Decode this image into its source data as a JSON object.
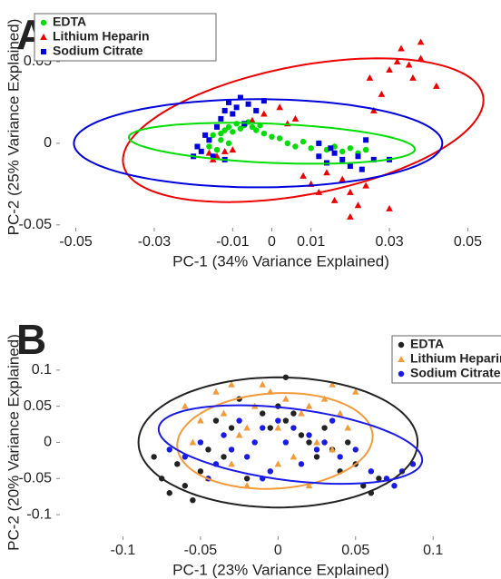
{
  "chart_data": [
    {
      "type": "scatter",
      "panel": "A",
      "xlabel": "PC-1 (34% Variance Explained)",
      "ylabel": "PC-2 (25% Variance Explained)",
      "xlim": [
        -0.055,
        0.055
      ],
      "ylim": [
        -0.054,
        0.085
      ],
      "xticks": [
        -0.05,
        -0.03,
        -0.01,
        0,
        0.01,
        0.03,
        0.05
      ],
      "yticks": [
        -0.05,
        0,
        0.05
      ],
      "legend": "northwest",
      "series": [
        {
          "name": "EDTA",
          "color": "#00dd00",
          "marker": "circle",
          "x": [
            -0.015,
            -0.013,
            -0.012,
            -0.011,
            -0.01,
            -0.009,
            -0.008,
            -0.007,
            -0.006,
            -0.005,
            -0.004,
            -0.003,
            -0.002,
            -0.016,
            -0.014,
            0.002,
            0.004,
            0.006,
            0.008,
            0.01,
            0.012,
            0.014,
            0.016,
            0.018,
            0.02,
            0.022,
            0.024,
            -0.011,
            -0.013,
            0
          ],
          "y": [
            0.005,
            0.002,
            0.008,
            0.01,
            0.007,
            0.012,
            0.009,
            0.011,
            0.013,
            0.01,
            0.008,
            0.011,
            0.006,
            -0.002,
            -0.004,
            0.003,
            0,
            -0.002,
            0.001,
            -0.003,
            0,
            -0.004,
            -0.002,
            -0.005,
            -0.003,
            -0.006,
            -0.004,
            0,
            0.006,
            0.004
          ]
        },
        {
          "name": "Lithium Heparin",
          "color": "#ee0000",
          "marker": "triangle",
          "x": [
            -0.016,
            -0.014,
            -0.012,
            -0.015,
            -0.01,
            -0.005,
            -0.002,
            0.002,
            0.004,
            0.006,
            0.008,
            0.01,
            0.012,
            0.014,
            0.016,
            0.018,
            0.02,
            0.022,
            0.024,
            0.026,
            0.028,
            0.03,
            0.032,
            0.033,
            0.035,
            0.036,
            0.038,
            0.042,
            0.03,
            0.02,
            0.025,
            0.038
          ],
          "y": [
            -0.006,
            -0.008,
            -0.005,
            -0.01,
            -0.004,
            0.014,
            0.018,
            0.022,
            0.012,
            0.015,
            -0.02,
            -0.025,
            -0.03,
            -0.018,
            -0.035,
            -0.022,
            -0.03,
            -0.038,
            -0.026,
            0.02,
            0.03,
            0.045,
            0.05,
            0.058,
            0.048,
            0.04,
            0.052,
            0.035,
            -0.04,
            -0.045,
            0.04,
            0.062
          ]
        },
        {
          "name": "Sodium Citrate",
          "color": "#0000dd",
          "marker": "square",
          "x": [
            -0.02,
            -0.018,
            -0.016,
            -0.015,
            -0.014,
            -0.013,
            -0.012,
            -0.011,
            -0.01,
            -0.009,
            -0.008,
            -0.006,
            -0.004,
            -0.002,
            -0.012,
            -0.017,
            0.012,
            0.014,
            0.016,
            0.018,
            0.02,
            0.022,
            0.024,
            0.026,
            0.03,
            0.012,
            0.015,
            0.023,
            -0.019,
            -0.007
          ],
          "y": [
            -0.008,
            -0.005,
            0.002,
            -0.008,
            0.01,
            0.015,
            0.02,
            0.025,
            0.018,
            0.022,
            0.028,
            0.024,
            0.02,
            0.026,
            -0.01,
            0.005,
            -0.008,
            -0.012,
            -0.006,
            -0.01,
            -0.014,
            -0.008,
            0.002,
            -0.01,
            -0.01,
            0,
            -0.003,
            -0.016,
            -0.002,
            0.012
          ]
        }
      ],
      "ellipses": [
        {
          "color": "#ee0000",
          "cx": 0.008,
          "cy": 0.008,
          "rx": 0.046,
          "ry": 0.04,
          "slope": 0.4
        },
        {
          "color": "#0000dd",
          "cx": -0.0035,
          "cy": 0,
          "rx": 0.047,
          "ry": 0.027,
          "slope": 0
        },
        {
          "color": "#00dd00",
          "cx": 0,
          "cy": 0,
          "rx": 0.0365,
          "ry": 0.012,
          "slope": -0.1
        }
      ]
    },
    {
      "type": "scatter",
      "panel": "B",
      "xlabel": "PC-1 (23% Variance Explained)",
      "ylabel": "PC-2 (20% Variance Explained)",
      "xlim": [
        -0.143,
        0.135
      ],
      "ylim": [
        -0.135,
        0.16
      ],
      "xticks": [
        -0.1,
        -0.05,
        0,
        0.05,
        0.1
      ],
      "yticks": [
        -0.1,
        -0.05,
        0,
        0.05,
        0.1
      ],
      "legend": "northeast",
      "series": [
        {
          "name": "EDTA",
          "color": "#222222",
          "marker": "circle",
          "x": [
            -0.08,
            -0.075,
            -0.07,
            -0.065,
            -0.06,
            -0.055,
            -0.05,
            -0.045,
            -0.04,
            -0.035,
            -0.03,
            -0.02,
            -0.01,
            -0.005,
            0,
            0.005,
            0.01,
            0.015,
            0.02,
            0.025,
            0.03,
            0.035,
            0.04,
            0.045,
            0.05,
            0.055,
            0.06,
            0.065,
            -0.025,
            0.005
          ],
          "y": [
            -0.02,
            -0.05,
            -0.07,
            -0.03,
            -0.06,
            -0.08,
            -0.04,
            -0.01,
            0.03,
            -0.02,
            0.02,
            -0.05,
            0.04,
            0.02,
            0.05,
            0.03,
            0.04,
            0.01,
            0,
            -0.02,
            0.02,
            -0.01,
            -0.04,
            0,
            -0.03,
            -0.06,
            -0.07,
            -0.05,
            0.06,
            0.09
          ]
        },
        {
          "name": "Lithium Heparin",
          "color": "#f39a3a",
          "marker": "triangle",
          "x": [
            -0.06,
            -0.055,
            -0.05,
            -0.045,
            -0.04,
            -0.035,
            -0.03,
            -0.025,
            -0.02,
            -0.015,
            -0.01,
            -0.005,
            0,
            0.005,
            0.01,
            0.015,
            0.02,
            0.025,
            0.03,
            0.035,
            0.04,
            0.045,
            0.05,
            0.02,
            -0.02,
            -0.03,
            0.035,
            0
          ],
          "y": [
            0.05,
            0,
            0.03,
            -0.05,
            0.07,
            0.04,
            -0.03,
            0.01,
            0.02,
            0.05,
            0.08,
            0.07,
            0.02,
            0.06,
            -0.02,
            0.04,
            0.05,
            0,
            0.06,
            -0.01,
            0.04,
            0.02,
            0.07,
            -0.06,
            -0.06,
            0.08,
            0.08,
            -0.03
          ]
        },
        {
          "name": "Sodium Citrate",
          "color": "#1a1ae6",
          "marker": "circle",
          "x": [
            -0.07,
            -0.06,
            -0.05,
            -0.04,
            -0.035,
            -0.03,
            -0.025,
            -0.02,
            -0.015,
            -0.01,
            -0.005,
            0,
            0.005,
            0.01,
            0.015,
            0.02,
            0.025,
            0.03,
            0.04,
            0.05,
            0.06,
            0.07,
            0.08,
            0.087,
            0.075,
            -0.045,
            0.035,
            -0.01
          ],
          "y": [
            -0.01,
            -0.02,
            0,
            -0.03,
            0.01,
            -0.01,
            0.03,
            -0.02,
            0,
            0.02,
            -0.04,
            0.03,
            0,
            0.02,
            -0.03,
            0.01,
            -0.01,
            0,
            -0.02,
            -0.01,
            -0.04,
            -0.05,
            -0.04,
            -0.03,
            -0.06,
            -0.05,
            0.03,
            -0.05
          ]
        }
      ],
      "ellipses": [
        {
          "color": "#222222",
          "cx": 0,
          "cy": 0,
          "rx": 0.09,
          "ry": 0.09,
          "slope": 0
        },
        {
          "color": "#f39a3a",
          "cx": -0.002,
          "cy": 0.002,
          "rx": 0.063,
          "ry": 0.066,
          "slope": 0.1
        },
        {
          "color": "#1a1ae6",
          "cx": 0.008,
          "cy": -0.003,
          "rx": 0.085,
          "ry": 0.05,
          "slope": -0.25
        }
      ]
    }
  ]
}
